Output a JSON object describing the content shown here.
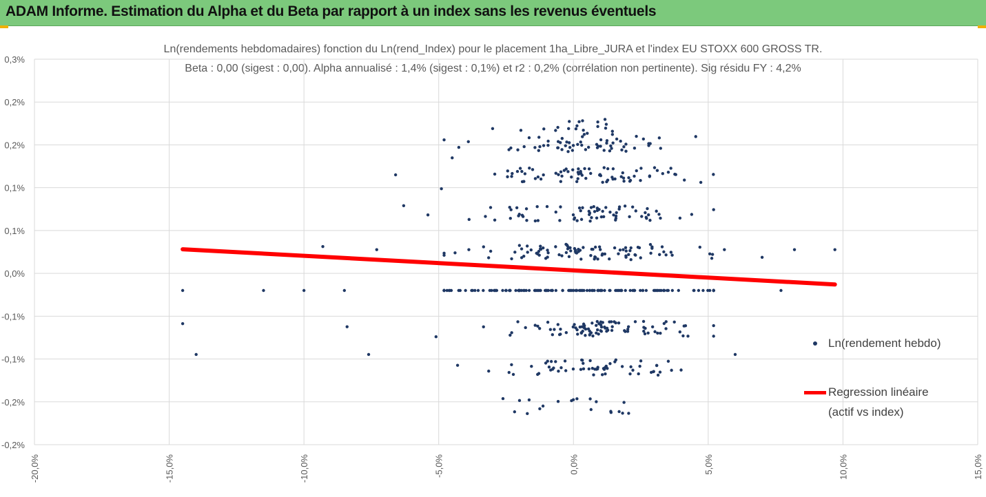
{
  "banner": {
    "title": "ADAM Informe. Estimation du Alpha et du Beta par rapport à un index sans les revenus éventuels"
  },
  "colors": {
    "banner_bg": "#7cc97c",
    "accent": "#f0b000",
    "points": "#1f3864",
    "regression": "#ff0000",
    "grid": "#d9d9d9"
  },
  "chart_data": {
    "type": "scatter",
    "title_line1": "Ln(rendements hebdomadaires) fonction du Ln(rend_Index) pour le placement 1ha_Libre_JURA et l'index EU STOXX 600 GROSS TR.",
    "title_line2": "Beta : 0,00 (sigest : 0,00). Alpha annualisé : 1,4% (sigest : 0,1%) et r2 : 0,2% (corrélation non pertinente). Sig résidu FY : 4,2%",
    "xlim": [
      -20,
      15
    ],
    "ylim": [
      -0.2,
      0.3
    ],
    "xticks": [
      "-20,0%",
      "-15,0%",
      "-10,0%",
      "-5,0%",
      "0,0%",
      "5,0%",
      "10,0%",
      "15,0%"
    ],
    "yticks": [
      "0,3%",
      "0,2%",
      "0,2%",
      "0,1%",
      "0,1%",
      "0,0%",
      "-0,1%",
      "-0,1%",
      "-0,2%",
      "-0,2%"
    ],
    "grid": true,
    "legend_position": "right",
    "series": [
      {
        "name": "Ln(rendement hebdo)",
        "kind": "scatter",
        "note": "dense cloud of weekly points concentrated at x between -5% and 5%, y quantized around -0.15,-0.1,-0.05,0,0.05,0.1,0.15,0.2"
      },
      {
        "name": "Regression linéaire\n(actif vs index)",
        "kind": "line",
        "x": [
          -14.5,
          9.7
        ],
        "y": [
          0.0535,
          0.0078
        ]
      }
    ],
    "scatter_levels": [
      {
        "y": 0.212,
        "cx": 0.0,
        "sx": 1.2,
        "n": 20
      },
      {
        "y": 0.19,
        "cx": 0.2,
        "sx": 1.9,
        "n": 60
      },
      {
        "y": 0.15,
        "cx": 0.5,
        "sx": 2.0,
        "n": 75
      },
      {
        "y": 0.1,
        "cx": 0.6,
        "sx": 2.0,
        "n": 70
      },
      {
        "y": 0.05,
        "cx": 0.6,
        "sx": 2.2,
        "n": 95
      },
      {
        "y": 0.0,
        "cx": 0.0,
        "sx": 3.0,
        "n": 140
      },
      {
        "y": -0.05,
        "cx": 0.6,
        "sx": 2.0,
        "n": 90
      },
      {
        "y": -0.1,
        "cx": 0.6,
        "sx": 1.8,
        "n": 60
      },
      {
        "y": -0.15,
        "cx": 0.2,
        "sx": 1.6,
        "n": 20
      }
    ],
    "outliers": [
      [
        -14.5,
        0.0
      ],
      [
        -14.5,
        -0.043
      ],
      [
        -14.0,
        -0.083
      ],
      [
        -11.5,
        0.0
      ],
      [
        -10.0,
        0.0
      ],
      [
        -9.3,
        0.057
      ],
      [
        -8.5,
        0.0
      ],
      [
        -8.4,
        -0.047
      ],
      [
        -7.6,
        -0.083
      ],
      [
        -7.3,
        0.053
      ],
      [
        -6.6,
        0.15
      ],
      [
        -6.3,
        0.11
      ],
      [
        -5.4,
        0.098
      ],
      [
        -5.1,
        -0.06
      ],
      [
        -4.9,
        0.132
      ],
      [
        -4.5,
        0.172
      ],
      [
        -4.3,
        -0.097
      ],
      [
        5.6,
        0.053
      ],
      [
        6.0,
        -0.083
      ],
      [
        7.0,
        0.043
      ],
      [
        7.7,
        0.0
      ],
      [
        8.2,
        0.053
      ],
      [
        9.7,
        0.053
      ],
      [
        -3.9,
        0.193
      ],
      [
        -3.0,
        0.21
      ]
    ]
  },
  "legend": {
    "series1": "Ln(rendement hebdo)",
    "series2_line1": "Regression linéaire",
    "series2_line2": "(actif vs index)"
  }
}
